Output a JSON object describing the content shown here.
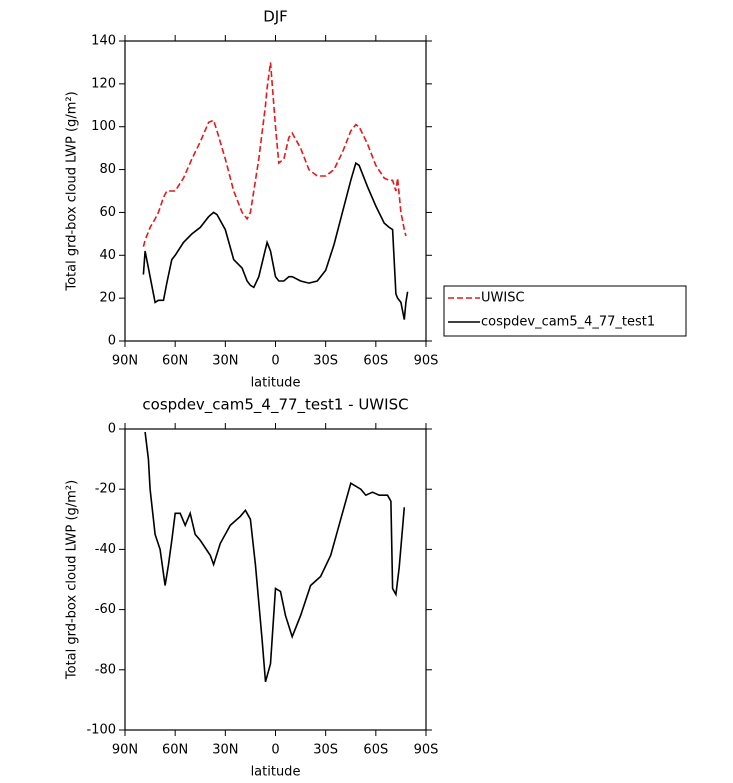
{
  "chart_data": [
    {
      "type": "line",
      "title": "DJF",
      "x_label": "latitude",
      "y_label": "Total grd-box cloud LWP (g/m²)",
      "x": [
        79,
        78,
        75,
        72,
        70,
        67,
        65,
        62,
        60,
        55,
        50,
        45,
        40,
        37,
        35,
        30,
        25,
        20,
        17,
        15,
        13,
        10,
        6,
        5,
        3,
        0,
        -2,
        -5,
        -8,
        -10,
        -15,
        -20,
        -25,
        -30,
        -35,
        -40,
        -45,
        -48,
        -50,
        -55,
        -60,
        -65,
        -68,
        -70,
        -72,
        -73,
        -75,
        -77,
        -78,
        -79
      ],
      "series": [
        {
          "name": "UWISC",
          "color": "#e41a1c",
          "style": "dashed",
          "values": [
            44,
            47,
            53,
            57,
            60,
            67,
            70,
            70,
            70,
            76,
            85,
            93,
            102,
            103,
            98,
            85,
            70,
            60,
            57,
            60,
            70,
            85,
            110,
            118,
            130,
            100,
            83,
            85,
            95,
            97,
            90,
            80,
            77,
            77,
            80,
            88,
            98,
            101,
            100,
            92,
            82,
            76,
            75,
            75,
            70,
            76,
            60,
            52,
            49,
            null
          ]
        },
        {
          "name": "cospdev_cam5_4_77_test1",
          "color": "#000000",
          "style": "solid",
          "values": [
            31,
            42,
            30,
            18,
            19,
            19,
            27,
            38,
            40,
            46,
            50,
            53,
            58,
            60,
            59,
            52,
            38,
            34,
            28,
            26,
            25,
            30,
            43,
            46,
            42,
            30,
            28,
            28,
            30,
            30,
            28,
            27,
            28,
            33,
            45,
            60,
            75,
            83,
            82,
            72,
            63,
            55,
            53,
            52,
            22,
            20,
            18,
            10,
            18,
            23
          ]
        }
      ],
      "xlim": [
        90,
        -90
      ],
      "xticks": [
        {
          "value": 90,
          "label": "90N"
        },
        {
          "value": 60,
          "label": "60N"
        },
        {
          "value": 30,
          "label": "30N"
        },
        0,
        {
          "value": -30,
          "label": "30S"
        },
        {
          "value": -60,
          "label": "60S"
        },
        {
          "value": -90,
          "label": "90S"
        }
      ],
      "ylim": [
        0,
        140
      ],
      "yticks": [
        0,
        20,
        40,
        60,
        80,
        100,
        120,
        140
      ],
      "legend": "right"
    },
    {
      "type": "line",
      "title": "cospdev_cam5_4_77_test1 - UWISC",
      "x_label": "latitude",
      "y_label": "Total grd-box cloud LWP (g/m²)",
      "x": [
        78,
        76,
        75,
        72,
        69,
        66,
        64,
        62,
        60,
        57,
        54,
        51,
        48,
        45,
        39,
        37,
        33,
        27,
        21,
        18,
        15,
        12,
        8,
        6,
        3,
        0,
        -3,
        -6,
        -10,
        -15,
        -21,
        -27,
        -33,
        -39,
        -45,
        -51,
        -54,
        -58,
        -62,
        -67,
        -69,
        -70,
        -72,
        -74,
        -77
      ],
      "series": [
        {
          "color": "#000000",
          "style": "solid",
          "values": [
            -1,
            -10,
            -20,
            -35,
            -40,
            -52,
            -45,
            -37,
            -28,
            -28,
            -32,
            -28,
            -35,
            -37,
            -42,
            -45,
            -38,
            -32,
            -29,
            -27,
            -30,
            -45,
            -70,
            -84,
            -78,
            -53,
            -54,
            -62,
            -69,
            -62,
            -52,
            -49,
            -42,
            -30,
            -18,
            -20,
            -22,
            -21,
            -22,
            -22,
            -24,
            -53,
            -55,
            -46,
            -26
          ]
        }
      ],
      "xlim": [
        90,
        -90
      ],
      "xticks": [
        {
          "value": 90,
          "label": "90N"
        },
        {
          "value": 60,
          "label": "60N"
        },
        {
          "value": 30,
          "label": "30N"
        },
        0,
        {
          "value": -30,
          "label": "30S"
        },
        {
          "value": -60,
          "label": "60S"
        },
        {
          "value": -90,
          "label": "90S"
        }
      ],
      "ylim": [
        -100,
        0
      ],
      "yticks": [
        -100,
        -80,
        -60,
        -40,
        -20,
        0
      ]
    }
  ]
}
